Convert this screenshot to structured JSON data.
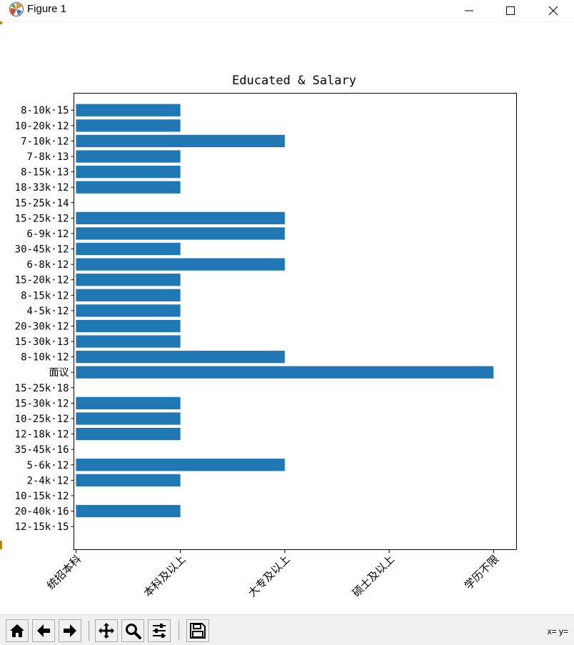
{
  "window": {
    "title": "Figure 1",
    "controls": [
      "minimize",
      "maximize",
      "close"
    ]
  },
  "toolbar": {
    "buttons": [
      "home-icon",
      "back-icon",
      "forward-icon",
      "pan-icon",
      "zoom-icon",
      "configure-subplots-icon",
      "save-icon"
    ],
    "coords_label": "x= y="
  },
  "chart_data": {
    "type": "bar",
    "orientation": "horizontal",
    "title": "Educated & Salary",
    "xlabel": "",
    "ylabel": "",
    "x_ticks": [
      "统招本科",
      "本科及以上",
      "大专及以上",
      "硕士及以上",
      "学历不限"
    ],
    "x_tick_rotation": 45,
    "xlim": [
      -0.02,
      4.22
    ],
    "grid": false,
    "bar_color": "#1f77b4",
    "categories": [
      "12-15k·15",
      "20-40k·16",
      "10-15k·12",
      "2-4k·12",
      "5-6k·12",
      "35-45k·16",
      "12-18k·12",
      "10-25k·12",
      "15-30k·12",
      "15-25k·18",
      "面议",
      "8-10k·12",
      "15-30k·13",
      "20-30k·12",
      "4-5k·12",
      "8-15k·12",
      "15-20k·12",
      "6-8k·12",
      "30-45k·12",
      "6-9k·12",
      "15-25k·12",
      "15-25k·14",
      "18-33k·12",
      "8-15k·13",
      "7-8k·13",
      "7-10k·12",
      "10-20k·12",
      "8-10k·15"
    ],
    "values": [
      0,
      1,
      0,
      1,
      2,
      0,
      1,
      1,
      1,
      0,
      4,
      2,
      1,
      1,
      1,
      1,
      1,
      2,
      1,
      2,
      2,
      0,
      1,
      1,
      1,
      2,
      1,
      1
    ]
  }
}
